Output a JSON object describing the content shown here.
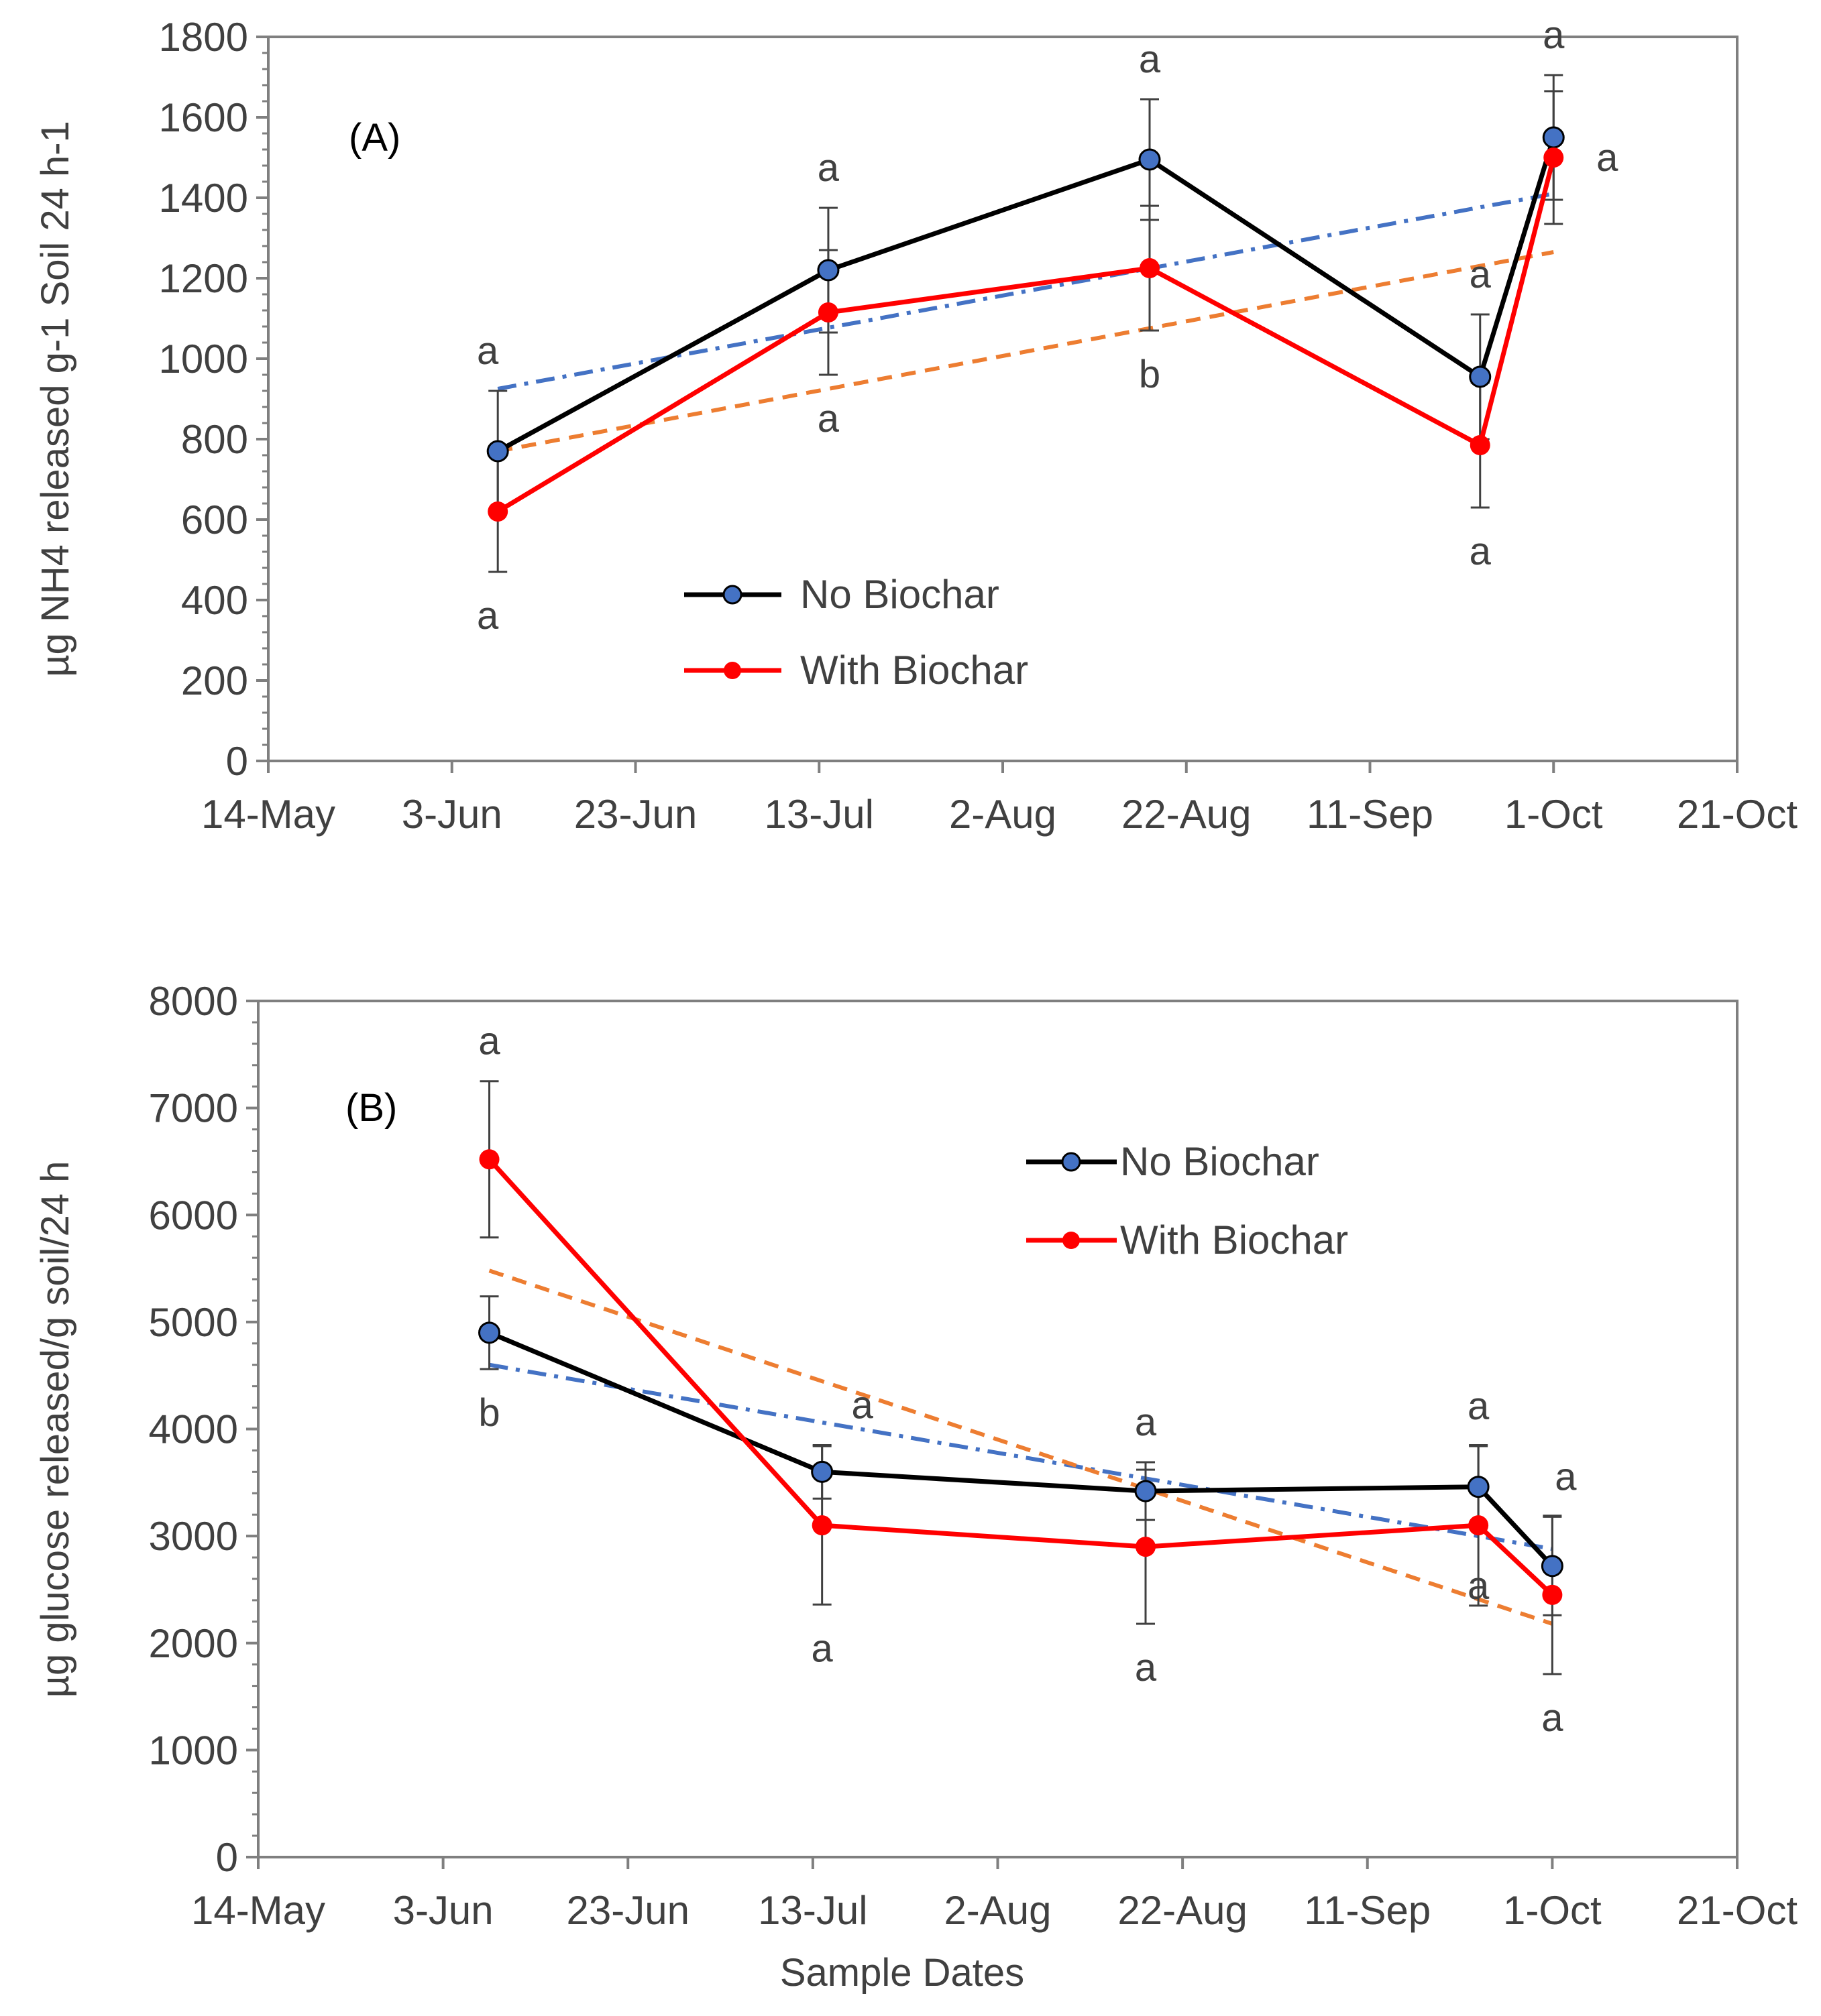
{
  "chart_data": [
    {
      "type": "line",
      "panel_label": "(A)",
      "ylabel": "µg NH4 released g-1 Soil 24 h-1",
      "xlabel": "",
      "ylim": [
        0,
        1800
      ],
      "yticks": [
        "0",
        "200",
        "400",
        "600",
        "800",
        "1000",
        "1200",
        "1400",
        "1600",
        "1800"
      ],
      "x_range_days": [
        0,
        160
      ],
      "xticks": [
        "14-May",
        "3-Jun",
        "23-Jun",
        "13-Jul",
        "2-Aug",
        "22-Aug",
        "11-Sep",
        "1-Oct",
        "21-Oct"
      ],
      "legend_position": "center",
      "series": [
        {
          "name": "No Biochar",
          "color": "#000000",
          "marker_color": "#4472C4",
          "x_days": [
            25,
            61,
            96,
            132,
            140
          ],
          "values": [
            770,
            1220,
            1495,
            955,
            1550
          ],
          "err": [
            150,
            155,
            150,
            155,
            155
          ],
          "letters": [
            "a",
            "a",
            "a",
            "a",
            "a"
          ],
          "trend": {
            "color": "#4472C4",
            "style": "dash-dot",
            "start": [
              25,
              925
            ],
            "end": [
              140,
              1410
            ]
          }
        },
        {
          "name": "With Biochar",
          "color": "#FF0000",
          "marker_color": "#FF0000",
          "x_days": [
            25,
            61,
            96,
            132,
            140
          ],
          "values": [
            620,
            1115,
            1225,
            785,
            1500
          ],
          "err": [
            150,
            155,
            155,
            155,
            165
          ],
          "letters": [
            "a",
            "a",
            "b",
            "a",
            "a"
          ],
          "trend": {
            "color": "#ED7D31",
            "style": "dash",
            "start": [
              25,
              770
            ],
            "end": [
              140,
              1265
            ]
          }
        }
      ]
    },
    {
      "type": "line",
      "panel_label": "(B)",
      "ylabel": "µg glucose released/g soil/24 h",
      "xlabel": "Sample Dates",
      "ylim": [
        0,
        8000
      ],
      "yticks": [
        "0",
        "1000",
        "2000",
        "3000",
        "4000",
        "5000",
        "6000",
        "7000",
        "8000"
      ],
      "x_range_days": [
        0,
        160
      ],
      "xticks": [
        "14-May",
        "3-Jun",
        "23-Jun",
        "13-Jul",
        "2-Aug",
        "22-Aug",
        "11-Sep",
        "1-Oct",
        "21-Oct"
      ],
      "legend_position": "top-right",
      "series": [
        {
          "name": "No Biochar",
          "color": "#000000",
          "marker_color": "#4472C4",
          "x_days": [
            25,
            61,
            96,
            132,
            140
          ],
          "values": [
            4900,
            3600,
            3420,
            3460,
            2720
          ],
          "err": [
            340,
            250,
            270,
            380,
            460
          ],
          "letters": [
            "b",
            "a",
            "a",
            "a",
            "a"
          ],
          "trend": {
            "color": "#4472C4",
            "style": "dash-dot",
            "start": [
              25,
              4600
            ],
            "end": [
              140,
              2880
            ]
          }
        },
        {
          "name": "With Biochar",
          "color": "#FF0000",
          "marker_color": "#FF0000",
          "x_days": [
            25,
            61,
            96,
            132,
            140
          ],
          "values": [
            6520,
            3100,
            2900,
            3100,
            2450
          ],
          "err": [
            730,
            740,
            720,
            750,
            740
          ],
          "letters": [
            "a",
            "a",
            "a",
            "a",
            "a"
          ],
          "trend": {
            "color": "#ED7D31",
            "style": "dash",
            "start": [
              25,
              5480
            ],
            "end": [
              140,
              2180
            ]
          }
        }
      ]
    }
  ]
}
